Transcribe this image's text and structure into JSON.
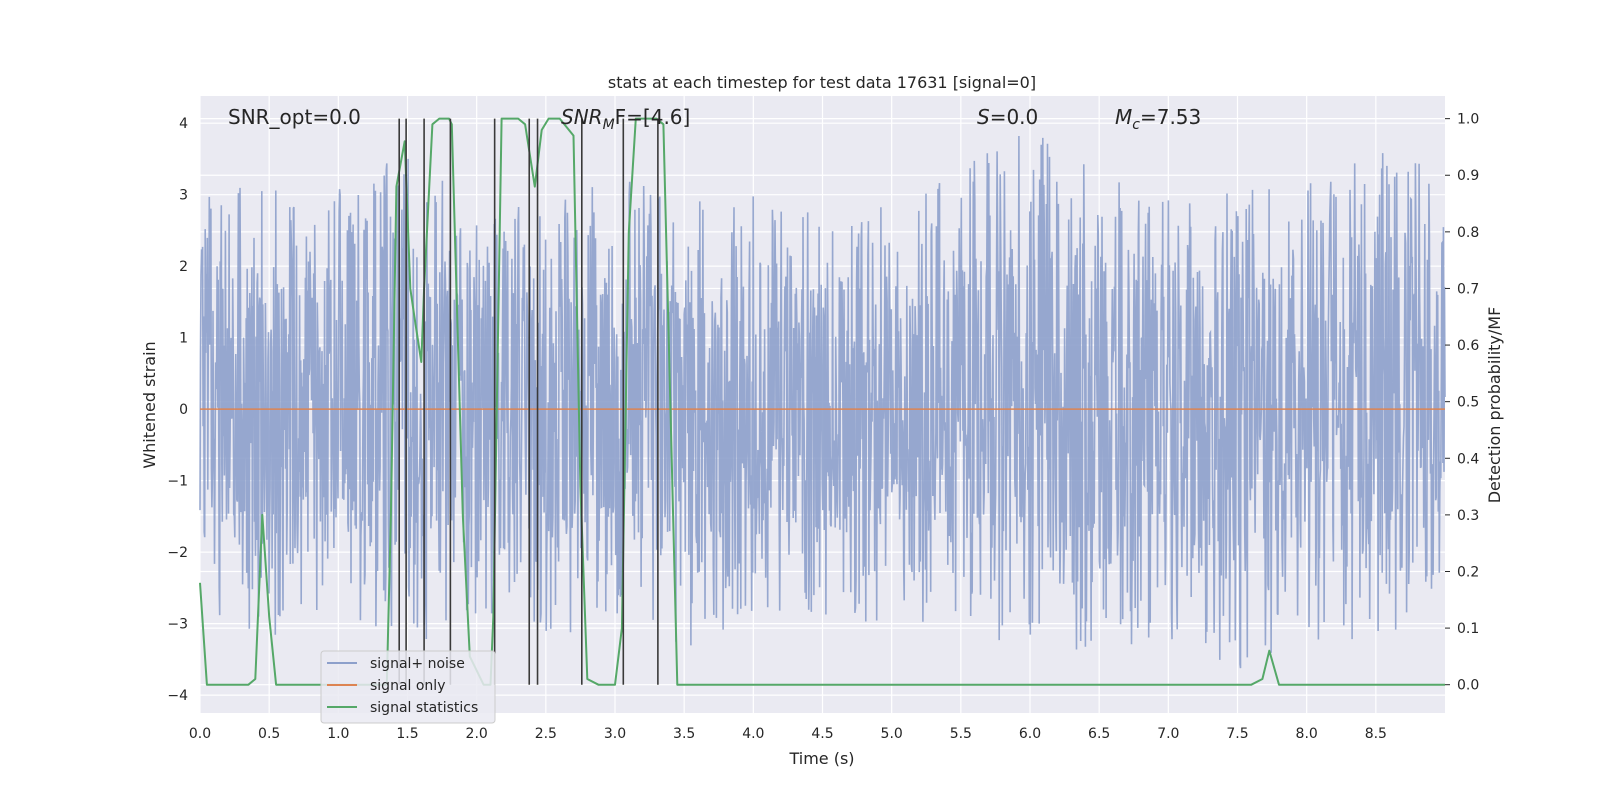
{
  "chart_data": {
    "type": "line",
    "title": "stats at each timestep for test data 17631 [signal=0]",
    "xlabel": "Time (s)",
    "ylabel": "Whitened strain",
    "ylabel_right": "Detection probability/MF",
    "xlim": [
      0.0,
      9.0
    ],
    "ylim": [
      -4.25,
      4.38
    ],
    "ylim_right": [
      -0.05,
      1.04
    ],
    "x_ticks": [
      "0.0",
      "0.5",
      "1.0",
      "1.5",
      "2.0",
      "2.5",
      "3.0",
      "3.5",
      "4.0",
      "4.5",
      "5.0",
      "5.5",
      "6.0",
      "6.5",
      "7.0",
      "7.5",
      "8.0",
      "8.5"
    ],
    "y_ticks": [
      "4",
      "3",
      "2",
      "1",
      "0",
      "−1",
      "−2",
      "−3",
      "−4"
    ],
    "y_ticks_right": [
      "1.0",
      "0.9",
      "0.8",
      "0.7",
      "0.6",
      "0.5",
      "0.4",
      "0.3",
      "0.2",
      "0.1",
      "0.0"
    ],
    "grid": true,
    "annotations": {
      "snr_opt": "SNR_opt=0.0",
      "snr_mf_main": "SNR",
      "snr_mf_sub": "M",
      "snr_mf_rest": "F=[4.6]",
      "s_main": "S",
      "s_rest": "=0.0",
      "mc_main": "M",
      "mc_sub": "c",
      "mc_rest": "=7.53"
    },
    "legend": {
      "placement": "lower-left",
      "entries": [
        "signal+ noise",
        "signal only",
        "signal statistics"
      ]
    },
    "colors": {
      "noise": "#8da0cb",
      "signal": "#dd8452",
      "stats": "#55a868",
      "vlines": "#3a3a3a",
      "background": "#eaeaf2"
    },
    "series": [
      {
        "name": "signal+ noise",
        "axis": "left",
        "description_range": [
          -3.7,
          4.0
        ],
        "envelope_x": [
          0.0,
          0.5,
          1.0,
          1.5,
          2.0,
          2.5,
          3.0,
          3.5,
          4.0,
          4.5,
          5.0,
          5.5,
          6.0,
          6.5,
          7.0,
          7.5,
          8.0,
          8.5,
          9.0
        ],
        "envelope_upper": [
          3.0,
          3.2,
          3.1,
          3.6,
          2.8,
          3.0,
          3.3,
          2.9,
          3.0,
          2.7,
          3.1,
          3.4,
          4.0,
          3.3,
          3.0,
          3.1,
          3.2,
          3.6,
          3.5
        ],
        "envelope_lower": [
          -3.0,
          -3.2,
          -3.1,
          -3.3,
          -3.0,
          -3.2,
          -3.0,
          -3.4,
          -2.9,
          -3.0,
          -3.0,
          -3.2,
          -3.3,
          -3.4,
          -3.2,
          -3.7,
          -3.3,
          -3.2,
          -2.9
        ]
      },
      {
        "name": "signal only",
        "axis": "left",
        "x": [
          0.0,
          9.0
        ],
        "y": [
          0.0,
          0.0
        ]
      },
      {
        "name": "signal statistics",
        "axis": "right",
        "x": [
          0.0,
          0.05,
          0.1,
          0.35,
          0.4,
          0.45,
          0.5,
          0.55,
          1.35,
          1.38,
          1.42,
          1.48,
          1.52,
          1.55,
          1.6,
          1.62,
          1.68,
          1.73,
          1.8,
          1.82,
          1.9,
          1.95,
          2.05,
          2.1,
          2.12,
          2.18,
          2.3,
          2.35,
          2.42,
          2.47,
          2.52,
          2.6,
          2.7,
          2.75,
          2.8,
          2.88,
          3.0,
          3.05,
          3.1,
          3.15,
          3.3,
          3.35,
          3.45,
          7.6,
          7.68,
          7.73,
          7.8,
          7.85,
          9.0
        ],
        "y": [
          0.18,
          0.0,
          0.0,
          0.0,
          0.01,
          0.3,
          0.12,
          0.0,
          0.0,
          0.3,
          0.88,
          0.96,
          0.7,
          0.65,
          0.57,
          0.7,
          0.99,
          1.0,
          1.0,
          0.99,
          0.3,
          0.05,
          0.0,
          0.0,
          0.12,
          1.0,
          1.0,
          0.99,
          0.88,
          0.98,
          1.0,
          1.0,
          0.97,
          0.35,
          0.01,
          0.0,
          0.0,
          0.1,
          0.8,
          1.0,
          1.0,
          0.99,
          0.0,
          0.0,
          0.01,
          0.06,
          0.0,
          0.0,
          0.0
        ]
      }
    ],
    "vertical_lines_x": [
      1.44,
      1.49,
      1.62,
      1.81,
      2.13,
      2.38,
      2.44,
      2.76,
      3.06,
      3.31
    ]
  }
}
